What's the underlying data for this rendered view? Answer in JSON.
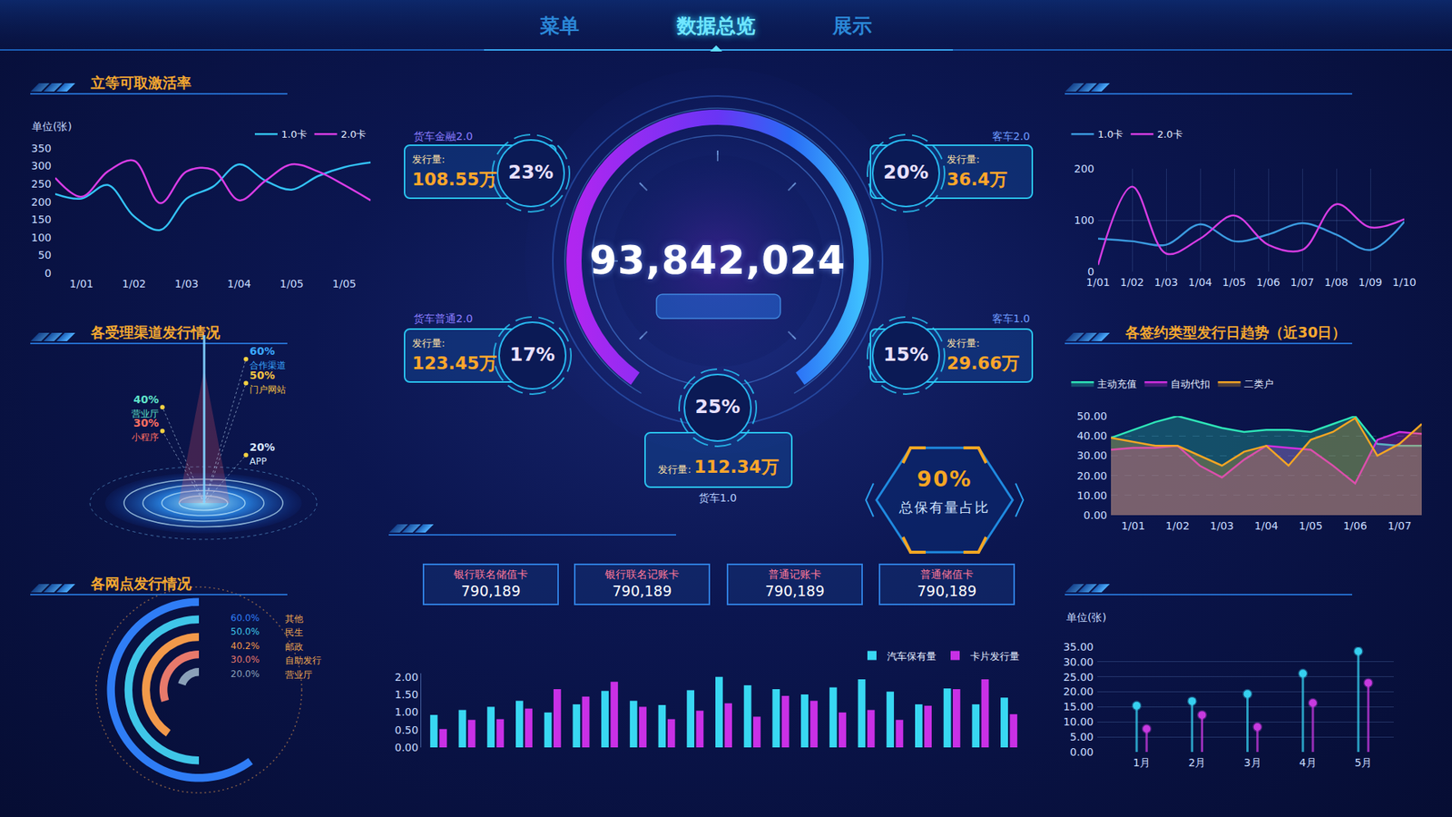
{
  "header": {
    "nav": [
      "菜单",
      "数据总览",
      "展示"
    ],
    "active": "数据总览"
  },
  "total": {
    "value": "93,842,024"
  },
  "badges": [
    {
      "name": "货车金融2.0",
      "percent": "23%",
      "label": "发行量:",
      "amount": "108.55万"
    },
    {
      "name": "客车2.0",
      "percent": "20%",
      "label": "发行量:",
      "amount": "36.4万"
    },
    {
      "name": "货车普通2.0",
      "percent": "17%",
      "label": "发行量:",
      "amount": "123.45万"
    },
    {
      "name": "客车1.0",
      "percent": "15%",
      "label": "发行量:",
      "amount": "29.66万"
    },
    {
      "name": "货车1.0",
      "percent": "25%",
      "label": "发行量:",
      "amount": "112.34万"
    }
  ],
  "share": {
    "value": "90%",
    "label": "总保有量占比"
  },
  "cards": [
    {
      "name": "银行联名储值卡",
      "value": "790,189"
    },
    {
      "name": "银行联名记账卡",
      "value": "790,189"
    },
    {
      "name": "普通记账卡",
      "value": "790,189"
    },
    {
      "name": "普通储值卡",
      "value": "790,189"
    }
  ],
  "chart_data": [
    {
      "type": "line",
      "title": "立等可取激活率",
      "ylabel": "单位(张)",
      "categories": [
        null,
        "1/01",
        null,
        "1/02",
        null,
        "1/03",
        null,
        "1/04",
        null,
        "1/05",
        null,
        "1/05",
        null
      ],
      "series": [
        {
          "name": "1.0卡",
          "color": "#33c2f5",
          "values": [
            222,
            209,
            247,
            159,
            121,
            209,
            242,
            305,
            259,
            234,
            272,
            297,
            310
          ]
        },
        {
          "name": "2.0卡",
          "color": "#d93ce6",
          "values": [
            267,
            214,
            285,
            315,
            196,
            285,
            290,
            204,
            259,
            305,
            285,
            247,
            204
          ]
        }
      ],
      "ylim": [
        0,
        350
      ],
      "yticks": [
        0,
        50,
        100,
        150,
        200,
        250,
        300,
        350
      ],
      "grid": false,
      "legend": "top-right"
    },
    {
      "type": "scatter",
      "title": "各受理渠道发行情况",
      "categories": [
        "合作渠道",
        "营业厅",
        "门户网站",
        "小程序",
        "APP"
      ],
      "values": [
        60,
        40,
        50,
        30,
        20
      ],
      "value_labels": [
        "60%",
        "40%",
        "50%",
        "30%",
        "20%"
      ],
      "colors": [
        "#3aa8ff",
        "#5fe3c9",
        "#f5c242",
        "#ff6f61",
        "#d8e8ff"
      ],
      "ylim": [
        0,
        70
      ],
      "tick_labels": false,
      "data_labels": true
    },
    {
      "type": "radial",
      "title": "各网点发行情况",
      "categories": [
        "其他",
        "民生",
        "邮政",
        "自助发行",
        "营业厅"
      ],
      "values": [
        60,
        50,
        40.2,
        30,
        20
      ],
      "value_labels": [
        "60.0%",
        "50.0%",
        "40.2%",
        "30.0%",
        "20.0%"
      ],
      "colors": [
        "#2f7df6",
        "#3fc6e8",
        "#f2994a",
        "#e8796b",
        "#8aa0b8"
      ],
      "data_labels": true
    },
    {
      "type": "bar",
      "categories": [
        null,
        null,
        null,
        null,
        null,
        null,
        null,
        null,
        null,
        null,
        null,
        null,
        null,
        null,
        null,
        null,
        null,
        null,
        null,
        null,
        null
      ],
      "series": [
        {
          "name": "汽车保有量",
          "color": "#38d8f2",
          "values": [
            0.92,
            1.06,
            1.15,
            1.32,
            0.99,
            1.22,
            1.6,
            1.32,
            1.2,
            1.62,
            2.0,
            1.76,
            1.65,
            1.5,
            1.7,
            1.93,
            1.58,
            1.22,
            1.67,
            1.22,
            1.41
          ]
        },
        {
          "name": "卡片发行量",
          "color": "#c930e6",
          "values": [
            0.52,
            0.78,
            0.8,
            1.1,
            1.65,
            1.44,
            1.86,
            1.15,
            0.8,
            1.04,
            1.25,
            0.87,
            1.46,
            1.32,
            0.99,
            1.06,
            0.78,
            1.18,
            1.65,
            1.93,
            0.94
          ]
        }
      ],
      "ylim": [
        0,
        2.1
      ],
      "yticks": [
        {
          "value": 0,
          "label": "0.00"
        },
        {
          "value": 0.5,
          "label": "0.50"
        },
        {
          "value": 1,
          "label": "1.00"
        },
        {
          "value": 1.5,
          "label": "1.50"
        },
        {
          "value": 2,
          "label": "2.00"
        }
      ],
      "grid": false,
      "legend": "top-right",
      "tick_labels": "y"
    },
    {
      "type": "line",
      "categories": [
        "1/01",
        "1/02",
        "1/03",
        "1/04",
        "1/05",
        "1/06",
        "1/07",
        "1/08",
        "1/09",
        "1/10"
      ],
      "series": [
        {
          "name": "1.0卡",
          "color": "#3b9be0",
          "values": [
            64,
            59,
            52,
            92,
            59,
            72,
            94,
            72,
            42,
            97
          ]
        },
        {
          "name": "2.0卡",
          "color": "#d63ce3",
          "values": [
            13,
            165,
            35,
            64,
            109,
            52,
            42,
            131,
            86,
            102
          ]
        }
      ],
      "ylim": [
        0,
        200
      ],
      "yticks": [
        0,
        100,
        200
      ],
      "grid": true,
      "legend": "top-left"
    },
    {
      "type": "area",
      "title": "各签约类型发行日趋势（近30日）",
      "categories": [
        null,
        "1/01",
        null,
        "1/02",
        null,
        "1/03",
        null,
        "1/04",
        null,
        "1/05",
        null,
        "1/06",
        null,
        "1/07",
        null
      ],
      "series": [
        {
          "name": "主动充值",
          "color": "#2ee6b8",
          "values": [
            39,
            43,
            47,
            50,
            47,
            44,
            42,
            43,
            43,
            42,
            46,
            50,
            36,
            35,
            35
          ]
        },
        {
          "name": "自动代扣",
          "color": "#d22fe0",
          "values": [
            33,
            34,
            34,
            35,
            25,
            19,
            28,
            35,
            34,
            33,
            25,
            16,
            38,
            42,
            41
          ]
        },
        {
          "name": "二类户",
          "color": "#f5a623",
          "values": [
            39,
            37,
            35,
            35,
            30,
            25,
            32,
            35,
            25,
            38,
            42,
            49,
            30,
            36,
            46
          ]
        }
      ],
      "ylim": [
        0,
        50
      ],
      "yticks": [
        {
          "value": 0,
          "label": "0.00"
        },
        {
          "value": 10,
          "label": "10.00"
        },
        {
          "value": 20,
          "label": "20.00"
        },
        {
          "value": 30,
          "label": "30.00"
        },
        {
          "value": 40,
          "label": "40.00"
        },
        {
          "value": 50,
          "label": "50.00"
        }
      ],
      "grid": true,
      "legend": "top-left"
    },
    {
      "type": "lollipop",
      "ylabel": "单位(张)",
      "categories": [
        "1月",
        "2月",
        "3月",
        "4月",
        "5月"
      ],
      "series": [
        {
          "color": "#36d0f0",
          "values": [
            15.4,
            16.9,
            19.3,
            26.1,
            33.5
          ]
        },
        {
          "color": "#c83ae0",
          "values": [
            7.7,
            12.3,
            8.3,
            16.3,
            23
          ]
        }
      ],
      "ylim": [
        0,
        35
      ],
      "yticks": [
        {
          "value": 0,
          "label": "0.00"
        },
        {
          "value": 5,
          "label": "5.00"
        },
        {
          "value": 10,
          "label": "10.00"
        },
        {
          "value": 15,
          "label": "15.00"
        },
        {
          "value": 20,
          "label": "20.00"
        },
        {
          "value": 25,
          "label": "25.00"
        },
        {
          "value": 30,
          "label": "30.00"
        },
        {
          "value": 35,
          "label": "35.00"
        }
      ],
      "grid": true,
      "marker": "circle"
    }
  ]
}
